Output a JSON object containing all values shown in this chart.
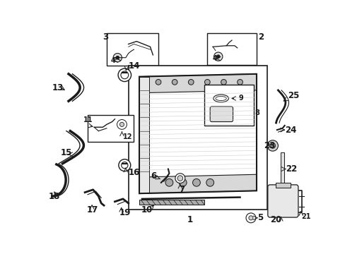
{
  "bg_color": "#ffffff",
  "line_color": "#1a1a1a",
  "fig_width": 4.89,
  "fig_height": 3.6,
  "dpi": 100,
  "label_fontsize": 8.5,
  "small_fontsize": 7.0
}
